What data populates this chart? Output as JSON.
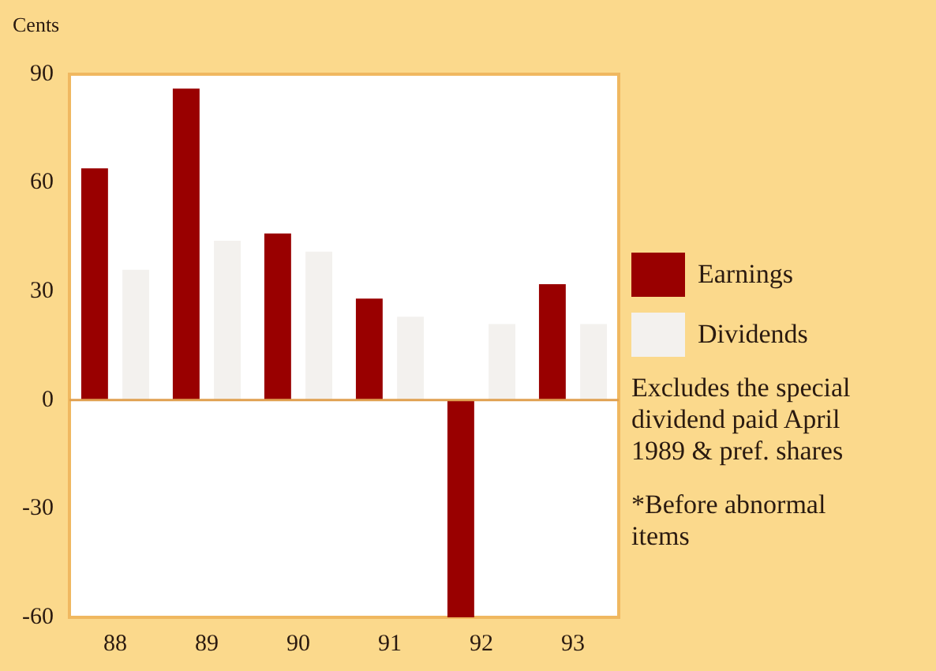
{
  "chart_data": {
    "type": "bar",
    "ylabel": "Cents",
    "categories": [
      "88",
      "89",
      "90",
      "91",
      "92",
      "93"
    ],
    "series": [
      {
        "name": "Earnings",
        "color": "#990000",
        "values": [
          64,
          86,
          46,
          28,
          -60,
          32
        ]
      },
      {
        "name": "Dividends",
        "color": "#f3f1ee",
        "values": [
          36,
          44,
          41,
          23,
          21,
          21
        ]
      }
    ],
    "ref_lines": [
      {
        "axis": "y",
        "value": 0,
        "color": "#e0a050"
      }
    ],
    "ylim": [
      -60,
      90
    ],
    "yticks": [
      -60,
      -30,
      0,
      30,
      60,
      90
    ],
    "grid": false,
    "legend": "right",
    "annotations": [
      "Excludes the special dividend paid April 1989 & pref. shares",
      "*Before abnormal items"
    ]
  }
}
